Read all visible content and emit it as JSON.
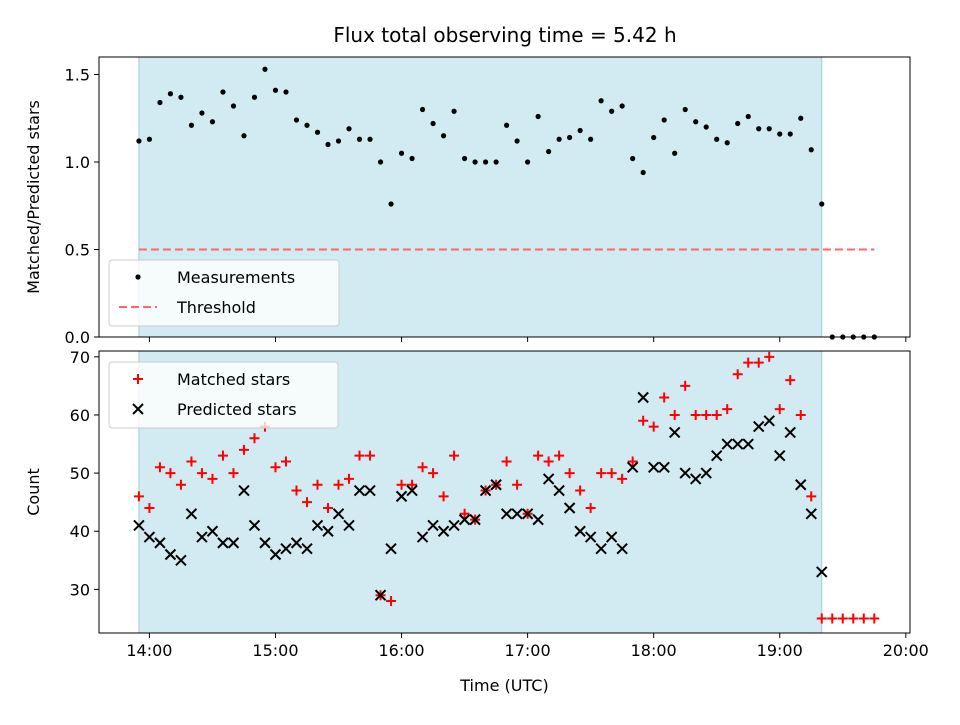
{
  "title": "Flux total observing time = 5.42 h",
  "colors": {
    "shade": "#add8e6",
    "shade_edge": "#9ecfd8",
    "measurement": "#000000",
    "threshold": "#ff6666",
    "matched": "#ff0000",
    "predicted": "#000000"
  },
  "chart_data": [
    {
      "type": "scatter",
      "ylabel": "Matched/Predicted stars",
      "xlabel": "",
      "x_is_time": true,
      "xlim": [
        "13:36",
        "20:02"
      ],
      "ylim": [
        0,
        1.6
      ],
      "yticks": [
        0.0,
        0.5,
        1.0,
        1.5
      ],
      "ytick_labels": [
        "0.0",
        "0.5",
        "1.0",
        "1.5"
      ],
      "shaded_span": [
        "13:55",
        "19:20"
      ],
      "grid": false,
      "legend_placement": "lower-left",
      "series": [
        {
          "name": "Measurements",
          "marker": "dot",
          "x": [
            "13:55",
            "14:00",
            "14:05",
            "14:10",
            "14:15",
            "14:20",
            "14:25",
            "14:30",
            "14:35",
            "14:40",
            "14:45",
            "14:50",
            "14:55",
            "15:00",
            "15:05",
            "15:10",
            "15:15",
            "15:20",
            "15:25",
            "15:30",
            "15:35",
            "15:40",
            "15:45",
            "15:50",
            "15:55",
            "16:00",
            "16:05",
            "16:10",
            "16:15",
            "16:20",
            "16:25",
            "16:30",
            "16:35",
            "16:40",
            "16:45",
            "16:50",
            "16:55",
            "17:00",
            "17:05",
            "17:10",
            "17:15",
            "17:20",
            "17:25",
            "17:30",
            "17:35",
            "17:40",
            "17:45",
            "17:50",
            "17:55",
            "18:00",
            "18:05",
            "18:10",
            "18:15",
            "18:20",
            "18:25",
            "18:30",
            "18:35",
            "18:40",
            "18:45",
            "18:50",
            "18:55",
            "19:00",
            "19:05",
            "19:10",
            "19:15",
            "19:20",
            "19:25",
            "19:30",
            "19:35",
            "19:40",
            "19:45"
          ],
          "y": [
            1.12,
            1.13,
            1.34,
            1.39,
            1.37,
            1.21,
            1.28,
            1.23,
            1.4,
            1.32,
            1.15,
            1.37,
            1.53,
            1.41,
            1.4,
            1.24,
            1.21,
            1.17,
            1.1,
            1.12,
            1.19,
            1.13,
            1.13,
            1.0,
            0.76,
            1.05,
            1.02,
            1.3,
            1.22,
            1.15,
            1.29,
            1.02,
            1.0,
            1.0,
            1.0,
            1.21,
            1.12,
            1.0,
            1.26,
            1.06,
            1.13,
            1.14,
            1.18,
            1.13,
            1.35,
            1.29,
            1.32,
            1.02,
            0.94,
            1.14,
            1.24,
            1.05,
            1.3,
            1.23,
            1.2,
            1.13,
            1.11,
            1.22,
            1.26,
            1.19,
            1.19,
            1.16,
            1.16,
            1.25,
            1.07,
            0.76,
            0.0,
            0.0,
            0.0,
            0.0,
            0.0
          ]
        },
        {
          "name": "Threshold",
          "style": "dashed",
          "x": [
            "13:55",
            "19:45"
          ],
          "y": [
            0.5,
            0.5
          ]
        }
      ]
    },
    {
      "type": "scatter",
      "ylabel": "Count",
      "xlabel": "Time (UTC)",
      "x_is_time": true,
      "xlim": [
        "13:36",
        "20:02"
      ],
      "ylim": [
        22.5,
        71
      ],
      "yticks": [
        30,
        40,
        50,
        60,
        70
      ],
      "ytick_labels": [
        "30",
        "40",
        "50",
        "60",
        "70"
      ],
      "xticks": [
        "14:00",
        "15:00",
        "16:00",
        "17:00",
        "18:00",
        "19:00",
        "20:00"
      ],
      "xtick_labels": [
        "14:00",
        "15:00",
        "16:00",
        "17:00",
        "18:00",
        "19:00",
        "20:00"
      ],
      "shaded_span": [
        "13:55",
        "19:20"
      ],
      "grid": false,
      "legend_placement": "upper-left",
      "series": [
        {
          "name": "Matched stars",
          "marker": "plus",
          "x": [
            "13:55",
            "14:00",
            "14:05",
            "14:10",
            "14:15",
            "14:20",
            "14:25",
            "14:30",
            "14:35",
            "14:40",
            "14:45",
            "14:50",
            "14:55",
            "15:00",
            "15:05",
            "15:10",
            "15:15",
            "15:20",
            "15:25",
            "15:30",
            "15:35",
            "15:40",
            "15:45",
            "15:50",
            "15:55",
            "16:00",
            "16:05",
            "16:10",
            "16:15",
            "16:20",
            "16:25",
            "16:30",
            "16:35",
            "16:40",
            "16:45",
            "16:50",
            "16:55",
            "17:00",
            "17:05",
            "17:10",
            "17:15",
            "17:20",
            "17:25",
            "17:30",
            "17:35",
            "17:40",
            "17:45",
            "17:50",
            "17:55",
            "18:00",
            "18:05",
            "18:10",
            "18:15",
            "18:20",
            "18:25",
            "18:30",
            "18:35",
            "18:40",
            "18:45",
            "18:50",
            "18:55",
            "19:00",
            "19:05",
            "19:10",
            "19:15",
            "19:20",
            "19:25",
            "19:30",
            "19:35",
            "19:40",
            "19:45"
          ],
          "y": [
            46,
            44,
            51,
            50,
            48,
            52,
            50,
            49,
            53,
            50,
            54,
            56,
            58,
            51,
            52,
            47,
            45,
            48,
            44,
            48,
            49,
            53,
            53,
            29,
            28,
            48,
            48,
            51,
            50,
            46,
            53,
            43,
            42,
            47,
            48,
            52,
            48,
            43,
            53,
            52,
            53,
            50,
            47,
            44,
            50,
            50,
            49,
            52,
            59,
            58,
            63,
            60,
            65,
            60,
            60,
            60,
            61,
            67,
            69,
            69,
            70,
            61,
            66,
            60,
            46,
            25,
            25,
            25,
            25,
            25,
            25
          ]
        },
        {
          "name": "Predicted stars",
          "marker": "x",
          "x": [
            "13:55",
            "14:00",
            "14:05",
            "14:10",
            "14:15",
            "14:20",
            "14:25",
            "14:30",
            "14:35",
            "14:40",
            "14:45",
            "14:50",
            "14:55",
            "15:00",
            "15:05",
            "15:10",
            "15:15",
            "15:20",
            "15:25",
            "15:30",
            "15:35",
            "15:40",
            "15:45",
            "15:50",
            "15:55",
            "16:00",
            "16:05",
            "16:10",
            "16:15",
            "16:20",
            "16:25",
            "16:30",
            "16:35",
            "16:40",
            "16:45",
            "16:50",
            "16:55",
            "17:00",
            "17:05",
            "17:10",
            "17:15",
            "17:20",
            "17:25",
            "17:30",
            "17:35",
            "17:40",
            "17:45",
            "17:50",
            "17:55",
            "18:00",
            "18:05",
            "18:10",
            "18:15",
            "18:20",
            "18:25",
            "18:30",
            "18:35",
            "18:40",
            "18:45",
            "18:50",
            "18:55",
            "19:00",
            "19:05",
            "19:10",
            "19:15",
            "19:20"
          ],
          "y": [
            41,
            39,
            38,
            36,
            35,
            43,
            39,
            40,
            38,
            38,
            47,
            41,
            38,
            36,
            37,
            38,
            37,
            41,
            40,
            43,
            41,
            47,
            47,
            29,
            37,
            46,
            47,
            39,
            41,
            40,
            41,
            42,
            42,
            47,
            48,
            43,
            43,
            43,
            42,
            49,
            47,
            44,
            40,
            39,
            37,
            39,
            37,
            51,
            63,
            51,
            51,
            57,
            50,
            49,
            50,
            53,
            55,
            55,
            55,
            58,
            59,
            53,
            57,
            48,
            43,
            33
          ]
        }
      ]
    }
  ]
}
